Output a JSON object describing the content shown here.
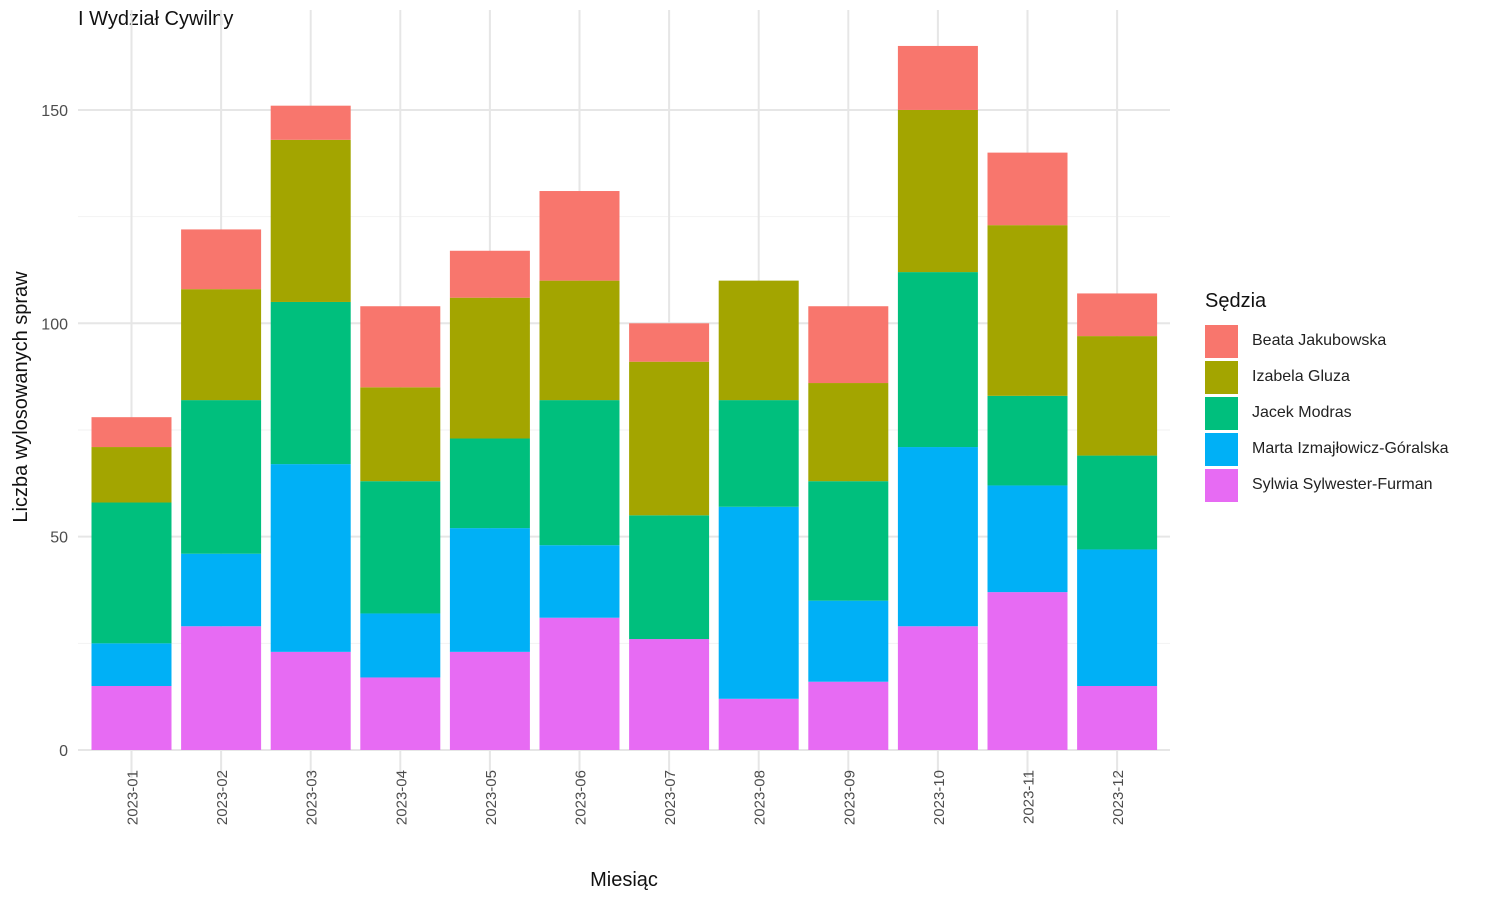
{
  "chart_data": {
    "type": "bar",
    "stacked": true,
    "title": "I Wydział Cywilny",
    "xlabel": "Miesiąc",
    "ylabel": "Liczba wylosowanych spraw",
    "ylim": [
      0,
      170
    ],
    "yticks": [
      0,
      50,
      100,
      150
    ],
    "grid": true,
    "legend_title": "Sędzia",
    "legend_position": "right",
    "categories": [
      "2023-01",
      "2023-02",
      "2023-03",
      "2023-04",
      "2023-05",
      "2023-06",
      "2023-07",
      "2023-08",
      "2023-09",
      "2023-10",
      "2023-11",
      "2023-12"
    ],
    "series": [
      {
        "name": "Beata Jakubowska",
        "color": "#F8766D",
        "values": [
          7,
          14,
          8,
          19,
          11,
          21,
          9,
          0,
          18,
          15,
          17,
          10
        ]
      },
      {
        "name": "Izabela Gluza",
        "color": "#A3A500",
        "values": [
          13,
          26,
          38,
          22,
          33,
          28,
          36,
          28,
          23,
          38,
          40,
          28
        ]
      },
      {
        "name": "Jacek Modras",
        "color": "#00BF7D",
        "values": [
          33,
          36,
          38,
          31,
          21,
          34,
          29,
          25,
          28,
          41,
          21,
          22
        ]
      },
      {
        "name": "Marta Izmajłowicz-Góralska",
        "color": "#00B0F6",
        "values": [
          10,
          17,
          44,
          15,
          29,
          17,
          0,
          45,
          19,
          42,
          25,
          32
        ]
      },
      {
        "name": "Sylwia Sylwester-Furman",
        "color": "#E76BF3",
        "values": [
          15,
          29,
          23,
          17,
          23,
          31,
          26,
          12,
          16,
          29,
          37,
          15
        ]
      }
    ]
  }
}
